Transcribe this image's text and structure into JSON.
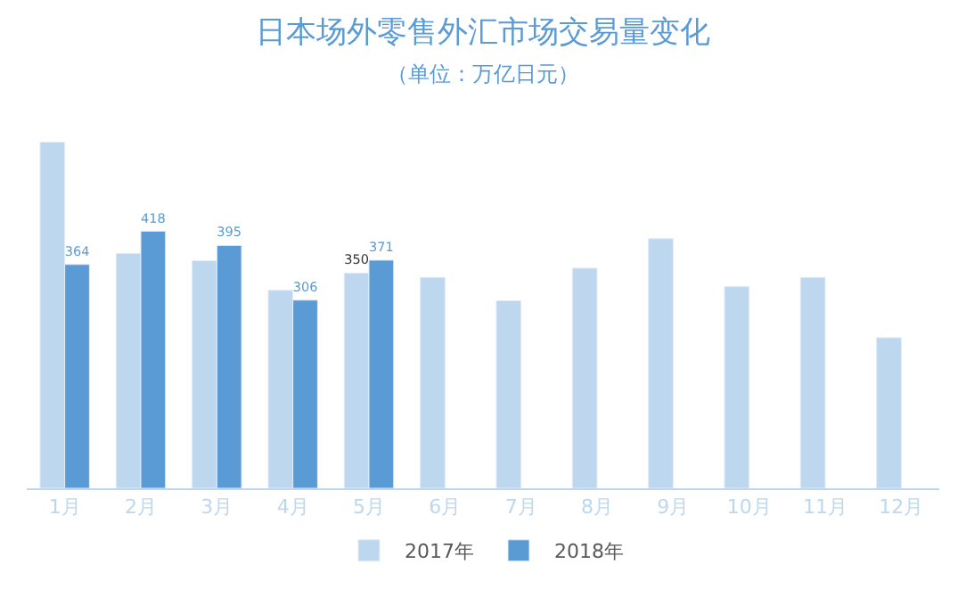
{
  "chart_data": {
    "type": "bar",
    "title": "日本场外零售外汇市场交易量变化",
    "subtitle": "（单位：万亿日元）",
    "categories": [
      "1月",
      "2月",
      "3月",
      "4月",
      "5月",
      "6月",
      "7月",
      "8月",
      "9月",
      "10月",
      "11月",
      "12月"
    ],
    "series": [
      {
        "name": "2017年",
        "color": "#bdd7ee",
        "values": [
          563,
          382,
          370,
          322,
          350,
          343,
          305,
          358,
          406,
          328,
          343,
          245
        ],
        "value_labels": [
          null,
          null,
          null,
          null,
          "350",
          null,
          null,
          null,
          null,
          null,
          null,
          null
        ]
      },
      {
        "name": "2018年",
        "color": "#5b9bd5",
        "values": [
          364,
          418,
          395,
          306,
          371,
          null,
          null,
          null,
          null,
          null,
          null,
          null
        ],
        "value_labels": [
          "364",
          "418",
          "395",
          "306",
          "371",
          null,
          null,
          null,
          null,
          null,
          null,
          null
        ]
      }
    ],
    "legend": "bottom"
  }
}
